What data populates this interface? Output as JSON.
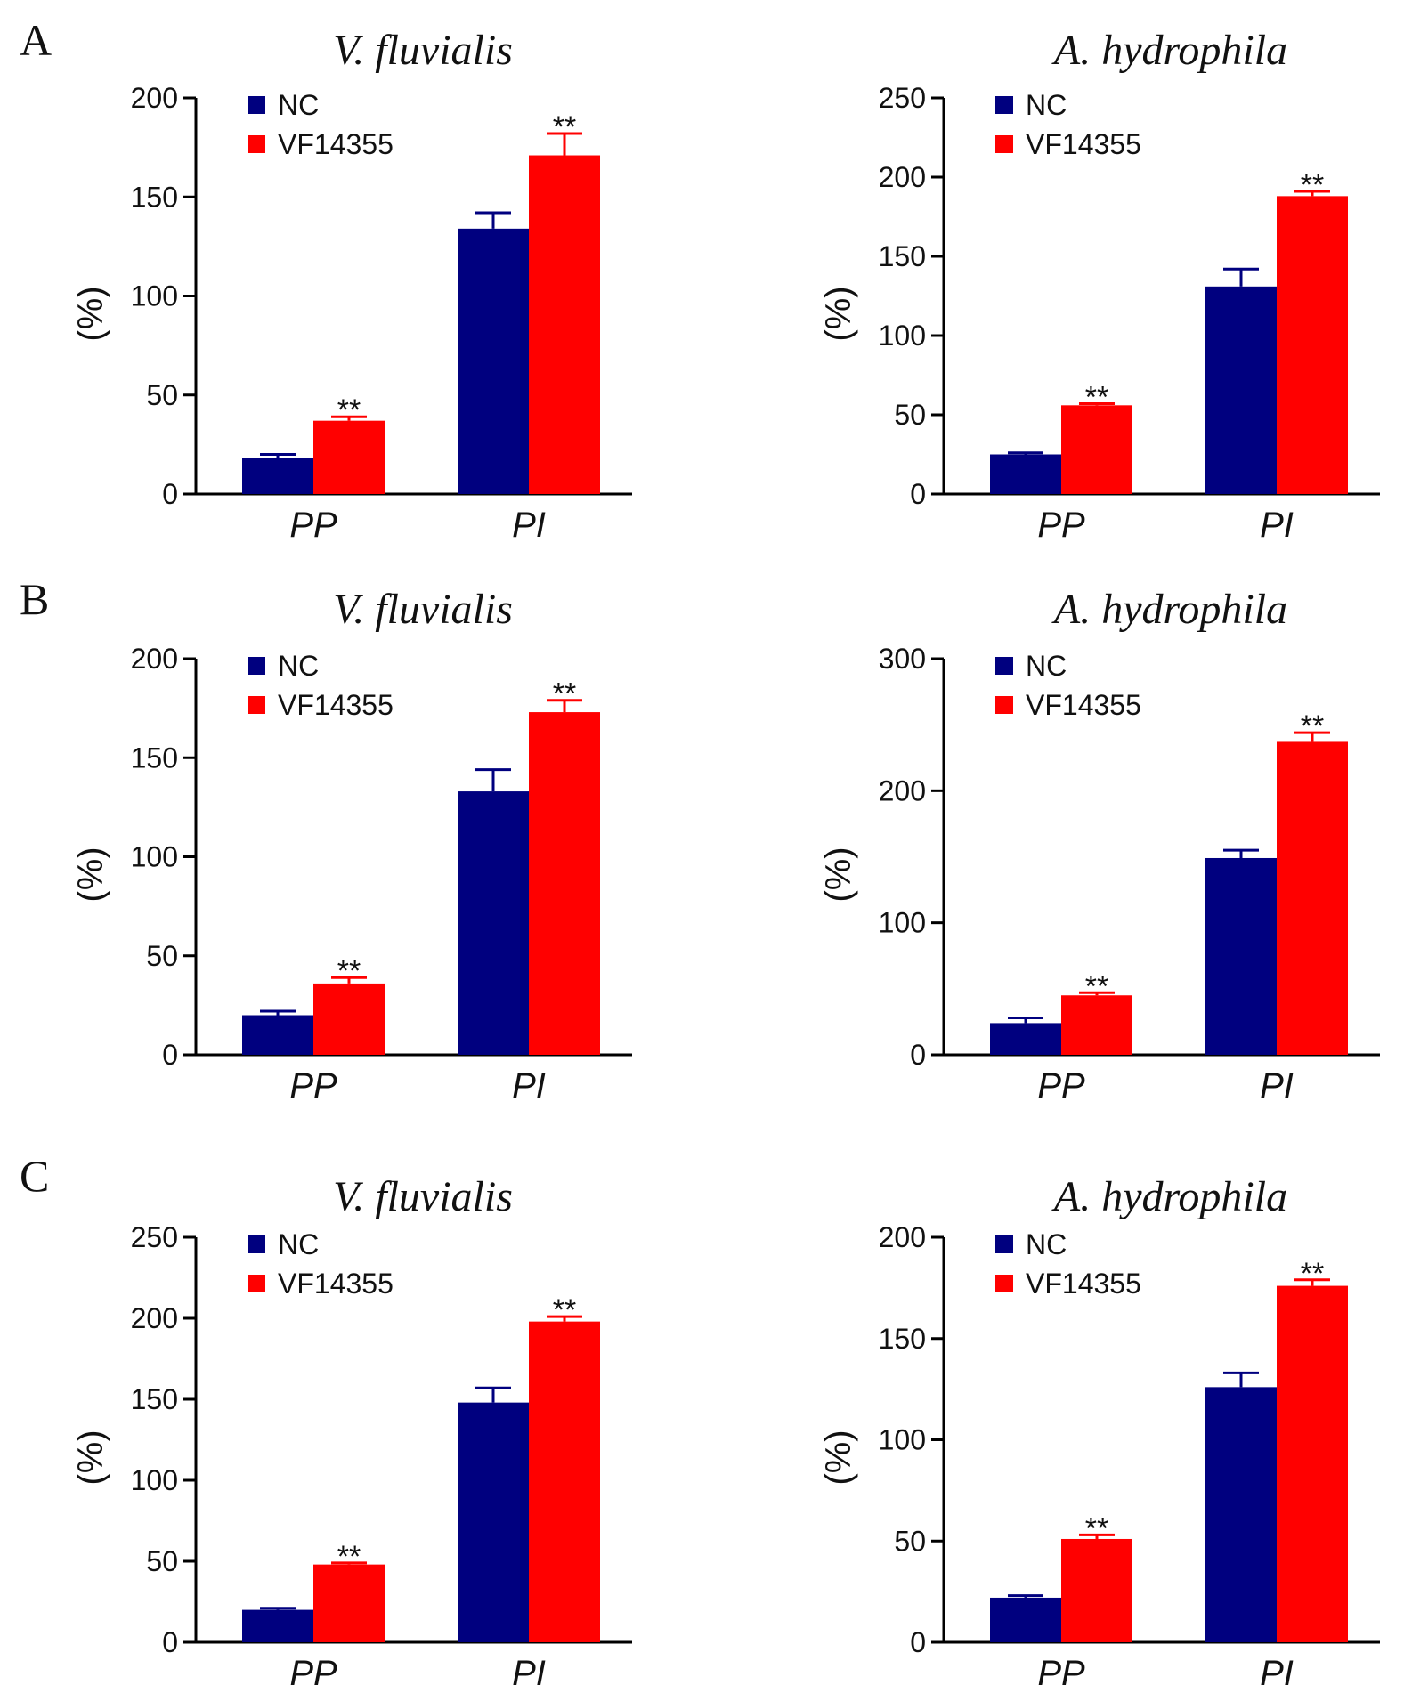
{
  "figure": {
    "panel_letters": [
      "A",
      "B",
      "C"
    ],
    "colors": {
      "NC": "#00007f",
      "VF14355": "#ff0000",
      "axis": "#000000"
    }
  },
  "chart_data": [
    {
      "type": "bar",
      "panel": "A",
      "title": "V. fluvialis",
      "categories": [
        "PP",
        "PI"
      ],
      "ylabel": "(%)",
      "ylim": [
        0,
        200
      ],
      "yticks": [
        0,
        50,
        100,
        150,
        200
      ],
      "legend_position": "top-left",
      "series": [
        {
          "name": "NC",
          "values": [
            18,
            134
          ],
          "errors": [
            2,
            8
          ]
        },
        {
          "name": "VF14355",
          "values": [
            37,
            171
          ],
          "errors": [
            2,
            11
          ]
        }
      ],
      "annotations": [
        {
          "category": "PP",
          "series": "VF14355",
          "text": "**"
        },
        {
          "category": "PI",
          "series": "VF14355",
          "text": "**"
        }
      ]
    },
    {
      "type": "bar",
      "panel": "A",
      "title": "A. hydrophila",
      "categories": [
        "PP",
        "PI"
      ],
      "ylabel": "(%)",
      "ylim": [
        0,
        250
      ],
      "yticks": [
        0,
        50,
        100,
        150,
        200,
        250
      ],
      "legend_position": "top-left",
      "series": [
        {
          "name": "NC",
          "values": [
            25,
            131
          ],
          "errors": [
            1,
            11
          ]
        },
        {
          "name": "VF14355",
          "values": [
            56,
            188
          ],
          "errors": [
            1,
            3
          ]
        }
      ],
      "annotations": [
        {
          "category": "PP",
          "series": "VF14355",
          "text": "**"
        },
        {
          "category": "PI",
          "series": "VF14355",
          "text": "**"
        }
      ]
    },
    {
      "type": "bar",
      "panel": "B",
      "title": "V. fluvialis",
      "categories": [
        "PP",
        "PI"
      ],
      "ylabel": "(%)",
      "ylim": [
        0,
        200
      ],
      "yticks": [
        0,
        50,
        100,
        150,
        200
      ],
      "legend_position": "top-left",
      "series": [
        {
          "name": "NC",
          "values": [
            20,
            133
          ],
          "errors": [
            2,
            11
          ]
        },
        {
          "name": "VF14355",
          "values": [
            36,
            173
          ],
          "errors": [
            3,
            6
          ]
        }
      ],
      "annotations": [
        {
          "category": "PP",
          "series": "VF14355",
          "text": "**"
        },
        {
          "category": "PI",
          "series": "VF14355",
          "text": "**"
        }
      ]
    },
    {
      "type": "bar",
      "panel": "B",
      "title": "A. hydrophila",
      "categories": [
        "PP",
        "PI"
      ],
      "ylabel": "(%)",
      "ylim": [
        0,
        300
      ],
      "yticks": [
        0,
        100,
        200,
        300
      ],
      "legend_position": "top-left",
      "series": [
        {
          "name": "NC",
          "values": [
            24,
            149
          ],
          "errors": [
            4,
            6
          ]
        },
        {
          "name": "VF14355",
          "values": [
            45,
            237
          ],
          "errors": [
            2,
            7
          ]
        }
      ],
      "annotations": [
        {
          "category": "PP",
          "series": "VF14355",
          "text": "**"
        },
        {
          "category": "PI",
          "series": "VF14355",
          "text": "**"
        }
      ]
    },
    {
      "type": "bar",
      "panel": "C",
      "title": "V. fluvialis",
      "categories": [
        "PP",
        "PI"
      ],
      "ylabel": "(%)",
      "ylim": [
        0,
        250
      ],
      "yticks": [
        0,
        50,
        100,
        150,
        200,
        250
      ],
      "legend_position": "top-left",
      "series": [
        {
          "name": "NC",
          "values": [
            20,
            148
          ],
          "errors": [
            1,
            9
          ]
        },
        {
          "name": "VF14355",
          "values": [
            48,
            198
          ],
          "errors": [
            1,
            3
          ]
        }
      ],
      "annotations": [
        {
          "category": "PP",
          "series": "VF14355",
          "text": "**"
        },
        {
          "category": "PI",
          "series": "VF14355",
          "text": "**"
        }
      ]
    },
    {
      "type": "bar",
      "panel": "C",
      "title": "A. hydrophila",
      "categories": [
        "PP",
        "PI"
      ],
      "ylabel": "(%)",
      "ylim": [
        0,
        200
      ],
      "yticks": [
        0,
        50,
        100,
        150,
        200
      ],
      "legend_position": "top-left",
      "series": [
        {
          "name": "NC",
          "values": [
            22,
            126
          ],
          "errors": [
            1,
            7
          ]
        },
        {
          "name": "VF14355",
          "values": [
            51,
            176
          ],
          "errors": [
            2,
            3
          ]
        }
      ],
      "annotations": [
        {
          "category": "PP",
          "series": "VF14355",
          "text": "**"
        },
        {
          "category": "PI",
          "series": "VF14355",
          "text": "**"
        }
      ]
    }
  ]
}
